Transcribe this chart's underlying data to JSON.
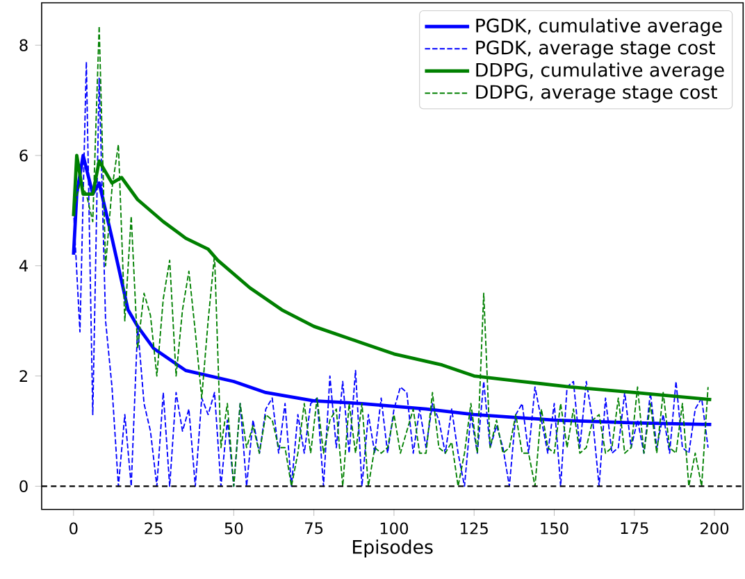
{
  "chart_data": {
    "type": "line",
    "xlabel": "Episodes",
    "xlim": [
      -9.95,
      208.95
    ],
    "ylim": [
      -0.42,
      8.77
    ],
    "xticks": [
      0,
      25,
      50,
      75,
      100,
      125,
      150,
      175,
      200
    ],
    "yticks": [
      0,
      2,
      4,
      6,
      8
    ],
    "grid": false,
    "legend": "top right",
    "marker": "none",
    "ref_lines": [
      {
        "axis": "y",
        "value": 0,
        "color": "#000000",
        "line_style": "dashed"
      }
    ],
    "series": [
      {
        "name": "PGDK, cumulative average",
        "color": "#0000ff",
        "line_style": "solid",
        "x": [
          0,
          1,
          3,
          6,
          8,
          12,
          17,
          20,
          25,
          35,
          50,
          60,
          75,
          90,
          110,
          125,
          150,
          175,
          199
        ],
        "values": [
          4.2,
          5.3,
          6.0,
          5.3,
          5.5,
          4.5,
          3.2,
          2.9,
          2.5,
          2.1,
          1.9,
          1.7,
          1.55,
          1.5,
          1.4,
          1.3,
          1.2,
          1.15,
          1.12
        ]
      },
      {
        "name": "PGDK, average stage cost",
        "color": "#0000ff",
        "line_style": "dashed",
        "x": [
          0,
          2,
          4,
          6,
          8,
          10,
          12,
          14,
          16,
          18,
          20,
          22,
          24,
          26,
          28,
          30,
          32,
          34,
          36,
          38,
          40,
          42,
          44,
          46,
          48,
          50,
          52,
          54,
          56,
          58,
          60,
          62,
          64,
          66,
          68,
          70,
          72,
          74,
          76,
          78,
          80,
          82,
          84,
          86,
          88,
          90,
          92,
          94,
          96,
          98,
          100,
          102,
          104,
          106,
          108,
          110,
          112,
          114,
          116,
          118,
          120,
          122,
          124,
          126,
          128,
          130,
          132,
          134,
          136,
          138,
          140,
          142,
          144,
          146,
          148,
          150,
          152,
          154,
          156,
          158,
          160,
          162,
          164,
          166,
          168,
          170,
          172,
          174,
          176,
          178,
          180,
          182,
          184,
          186,
          188,
          190,
          192,
          194,
          196,
          198
        ],
        "values": [
          5.0,
          2.8,
          7.7,
          1.3,
          7.4,
          3.0,
          1.8,
          0,
          1.3,
          0,
          2.9,
          1.5,
          1.0,
          0,
          1.7,
          0,
          1.7,
          1.0,
          1.4,
          0,
          1.6,
          1.3,
          1.7,
          0,
          1.2,
          0,
          1.5,
          0,
          1.2,
          0.6,
          1.4,
          1.6,
          0.6,
          1.5,
          0,
          1.3,
          0.6,
          1.5,
          1.6,
          0,
          2.0,
          0.7,
          1.9,
          0.6,
          2.1,
          0,
          1.3,
          0.6,
          1.6,
          0.6,
          1.4,
          1.8,
          1.7,
          0.6,
          1.4,
          0.7,
          1.5,
          1.2,
          0.6,
          1.4,
          0.6,
          0,
          1.3,
          0.6,
          1.9,
          0.7,
          1.1,
          0.7,
          0,
          1.3,
          1.5,
          0.6,
          1.8,
          1.2,
          0.6,
          1.5,
          0,
          1.8,
          1.9,
          0.7,
          1.9,
          1.2,
          0,
          1.6,
          0.6,
          0.7,
          1.7,
          0.7,
          1.2,
          0.6,
          1.7,
          0.7,
          1.3,
          0.6,
          1.9,
          0.7,
          0.6,
          1.4,
          1.6,
          0.7
        ]
      },
      {
        "name": "DDPG, cumulative average",
        "color": "#008000",
        "line_style": "solid",
        "x": [
          0,
          1,
          3,
          6,
          8,
          12,
          15,
          20,
          28,
          35,
          42,
          45,
          55,
          65,
          75,
          90,
          100,
          115,
          125,
          140,
          155,
          175,
          199
        ],
        "values": [
          4.9,
          6.0,
          5.3,
          5.3,
          5.9,
          5.5,
          5.6,
          5.2,
          4.8,
          4.5,
          4.3,
          4.1,
          3.6,
          3.2,
          2.9,
          2.6,
          2.4,
          2.2,
          2.0,
          1.9,
          1.8,
          1.7,
          1.57
        ]
      },
      {
        "name": "DDPG, average stage cost",
        "color": "#008000",
        "line_style": "dashed",
        "x": [
          0,
          2,
          4,
          6,
          8,
          10,
          12,
          14,
          16,
          18,
          20,
          22,
          24,
          26,
          28,
          30,
          32,
          34,
          36,
          38,
          40,
          42,
          44,
          46,
          48,
          50,
          52,
          54,
          56,
          58,
          60,
          62,
          64,
          66,
          68,
          70,
          72,
          74,
          76,
          78,
          80,
          82,
          84,
          86,
          88,
          90,
          92,
          94,
          96,
          98,
          100,
          102,
          104,
          106,
          108,
          110,
          112,
          114,
          116,
          118,
          120,
          122,
          124,
          126,
          128,
          130,
          132,
          134,
          136,
          138,
          140,
          142,
          144,
          146,
          148,
          150,
          152,
          154,
          156,
          158,
          160,
          162,
          164,
          166,
          168,
          170,
          172,
          174,
          176,
          178,
          180,
          182,
          184,
          186,
          188,
          190,
          192,
          194,
          196,
          198
        ],
        "values": [
          5.0,
          5.5,
          5.3,
          4.8,
          8.35,
          4.0,
          5.4,
          6.2,
          3.0,
          4.9,
          2.5,
          3.5,
          3.1,
          2.0,
          3.4,
          4.1,
          2.0,
          3.2,
          3.9,
          2.8,
          1.6,
          3.0,
          4.2,
          0.7,
          1.5,
          0,
          1.5,
          0.7,
          1.1,
          0.6,
          1.3,
          1.2,
          0.7,
          0.7,
          0,
          0.6,
          1.5,
          0.6,
          1.6,
          0.6,
          1.2,
          1.4,
          0,
          1.5,
          0.6,
          1.5,
          0,
          0.7,
          0.6,
          0.7,
          1.3,
          0.6,
          1.0,
          1.4,
          0.6,
          0.6,
          1.7,
          0.7,
          0.6,
          0.8,
          0,
          0.6,
          1.5,
          0.6,
          3.5,
          0.7,
          1.2,
          0.6,
          0.7,
          1.3,
          0.6,
          0.6,
          0,
          1.4,
          0.7,
          0.6,
          1.5,
          0.7,
          1.4,
          0.6,
          0.7,
          1.2,
          1.3,
          0.6,
          0.7,
          1.6,
          0.6,
          0.7,
          1.8,
          0.6,
          1.5,
          0.6,
          1.7,
          0.7,
          0.6,
          1.5,
          0,
          0.6,
          0,
          1.8
        ]
      }
    ]
  }
}
